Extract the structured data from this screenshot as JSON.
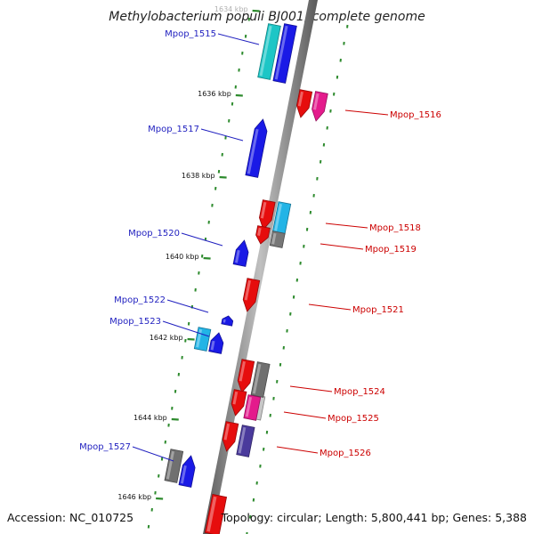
{
  "title": "Methylobacterium populi BJ001, complete genome",
  "footer": {
    "accession": "Accession: NC_010725",
    "topology": "Topology: circular; Length: 5,800,441 bp; Genes: 5,388"
  },
  "colors": {
    "backbone": "#888888",
    "tick": "#2e8b2e",
    "label_forward": "#1f1fbf",
    "label_reverse": "#cc0000"
  },
  "ticks": [
    {
      "label": "1634 kbp",
      "faded": true
    },
    {
      "label": "1636 kbp"
    },
    {
      "label": "1638 kbp"
    },
    {
      "label": "1640 kbp"
    },
    {
      "label": "1642 kbp"
    },
    {
      "label": "1644 kbp"
    },
    {
      "label": "1646 kbp"
    }
  ],
  "genes": [
    {
      "name": "Mpop_1515",
      "strand": "+",
      "color": "#1dc6c6"
    },
    {
      "name": "Mpop_1516",
      "strand": "-",
      "color": "#e41b8c"
    },
    {
      "name": "Mpop_1517",
      "strand": "+",
      "color": "#1a1ae6"
    },
    {
      "name": "Mpop_1518",
      "strand": "-",
      "color": "#22b4e6"
    },
    {
      "name": "Mpop_1519",
      "strand": "-",
      "color": "#777777"
    },
    {
      "name": "Mpop_1520",
      "strand": "+",
      "color": "#1a1ae6"
    },
    {
      "name": "Mpop_1521",
      "strand": "-",
      "color": "#e60d0d"
    },
    {
      "name": "Mpop_1522",
      "strand": "+",
      "color": "#1a1ae6"
    },
    {
      "name": "Mpop_1523",
      "strand": "+",
      "color": "#22b4e6"
    },
    {
      "name": "Mpop_1524",
      "strand": "-",
      "color": "#707070"
    },
    {
      "name": "Mpop_1525",
      "strand": "-",
      "color": "#e41b8c"
    },
    {
      "name": "Mpop_1526",
      "strand": "-",
      "color": "#4a3a9c"
    },
    {
      "name": "Mpop_1527",
      "strand": "+",
      "color": "#707070"
    }
  ]
}
